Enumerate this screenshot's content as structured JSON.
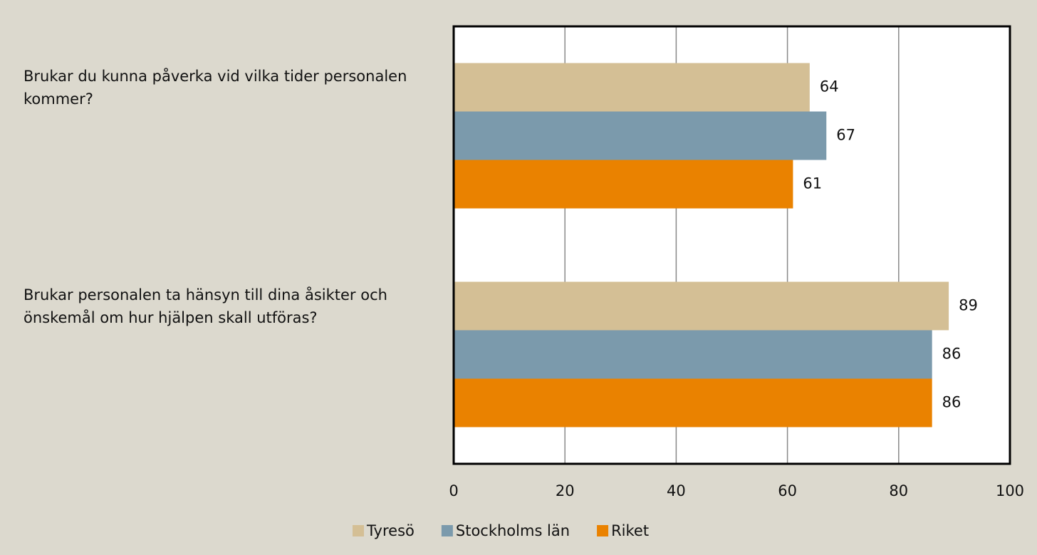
{
  "chart_data": {
    "type": "barh",
    "categories": [
      "Brukar du kunna påverka vid vilka tider personalen kommer?",
      "Brukar personalen ta hänsyn till dina åsikter och önskemål om hur hjälpen skall utföras?"
    ],
    "series": [
      {
        "name": "Tyresö",
        "color": "#d4bf95",
        "values": [
          64,
          89
        ]
      },
      {
        "name": "Stockholms län",
        "color": "#7b9aac",
        "values": [
          67,
          86
        ]
      },
      {
        "name": "Riket",
        "color": "#ea8200",
        "values": [
          61,
          86
        ]
      }
    ],
    "xlim": [
      0,
      100
    ],
    "xticks": [
      0,
      20,
      40,
      60,
      80,
      100
    ],
    "grid": true,
    "legend": "bottom"
  }
}
